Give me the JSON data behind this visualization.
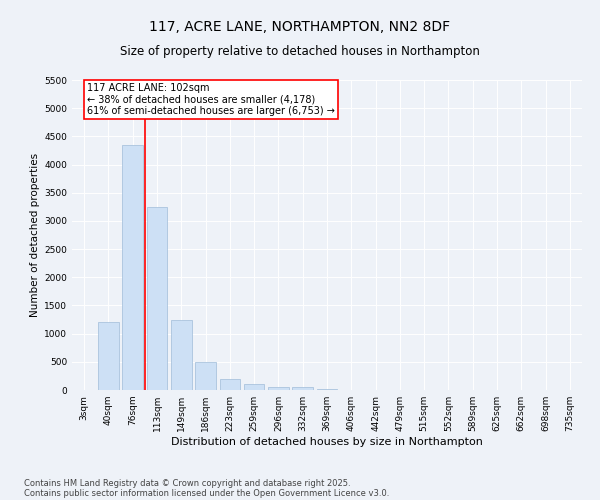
{
  "title1": "117, ACRE LANE, NORTHAMPTON, NN2 8DF",
  "title2": "Size of property relative to detached houses in Northampton",
  "xlabel": "Distribution of detached houses by size in Northampton",
  "ylabel": "Number of detached properties",
  "categories": [
    "3sqm",
    "40sqm",
    "76sqm",
    "113sqm",
    "149sqm",
    "186sqm",
    "223sqm",
    "259sqm",
    "296sqm",
    "332sqm",
    "369sqm",
    "406sqm",
    "442sqm",
    "479sqm",
    "515sqm",
    "552sqm",
    "589sqm",
    "625sqm",
    "662sqm",
    "698sqm",
    "735sqm"
  ],
  "values": [
    0,
    1210,
    4340,
    3250,
    1250,
    500,
    200,
    100,
    60,
    50,
    10,
    0,
    0,
    0,
    0,
    0,
    0,
    0,
    0,
    0,
    0
  ],
  "bar_color": "#cde0f5",
  "bar_edge_color": "#a0bcd8",
  "vline_color": "red",
  "annotation_text": "117 ACRE LANE: 102sqm\n← 38% of detached houses are smaller (4,178)\n61% of semi-detached houses are larger (6,753) →",
  "annotation_box_color": "white",
  "annotation_box_edge": "red",
  "ylim": [
    0,
    5500
  ],
  "yticks": [
    0,
    500,
    1000,
    1500,
    2000,
    2500,
    3000,
    3500,
    4000,
    4500,
    5000,
    5500
  ],
  "bg_color": "#eef2f8",
  "grid_color": "white",
  "footer1": "Contains HM Land Registry data © Crown copyright and database right 2025.",
  "footer2": "Contains public sector information licensed under the Open Government Licence v3.0.",
  "title_fontsize": 10,
  "subtitle_fontsize": 8.5,
  "axis_label_fontsize": 7.5,
  "tick_fontsize": 6.5,
  "annotation_fontsize": 7,
  "footer_fontsize": 6
}
